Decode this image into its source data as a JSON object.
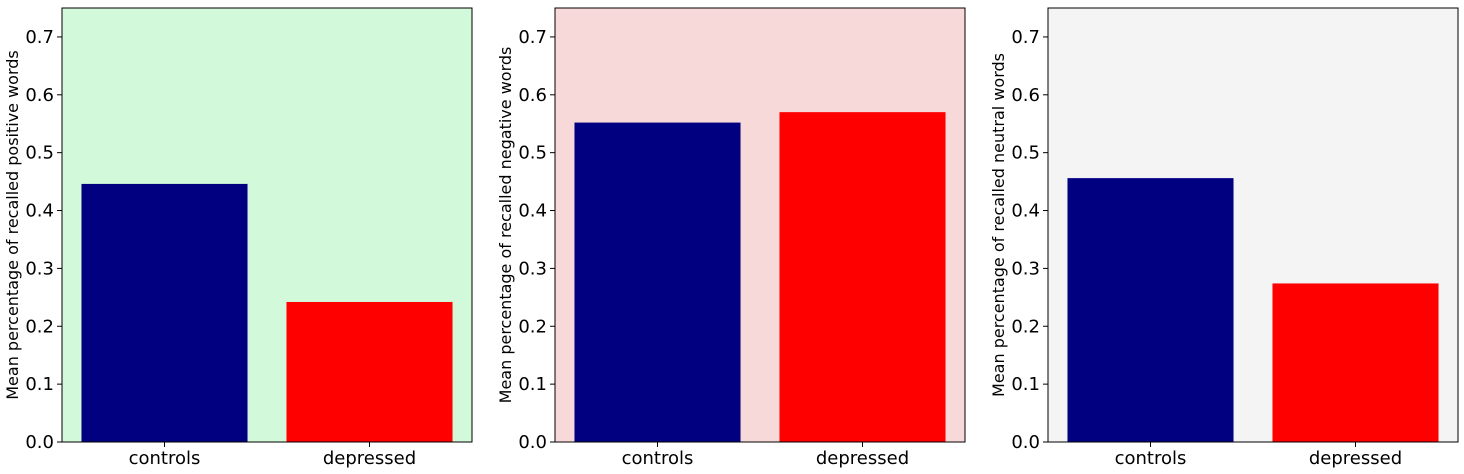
{
  "chart_data": [
    {
      "type": "bar",
      "categories": [
        "controls",
        "depressed"
      ],
      "values": [
        0.446,
        0.242
      ],
      "colors": [
        "#000080",
        "#ff0000"
      ],
      "background": "#d2f9d9",
      "ylabel": "Mean percentage of recalled positive words",
      "ylim": [
        0,
        0.75
      ],
      "yticks": [
        "0.0",
        "0.1",
        "0.2",
        "0.3",
        "0.4",
        "0.5",
        "0.6",
        "0.7"
      ],
      "grid": false,
      "legend": "none"
    },
    {
      "type": "bar",
      "categories": [
        "controls",
        "depressed"
      ],
      "values": [
        0.552,
        0.57
      ],
      "colors": [
        "#000080",
        "#ff0000"
      ],
      "background": "#f8d9d9",
      "ylabel": "Mean percentage of recalled negative words",
      "ylim": [
        0,
        0.75
      ],
      "yticks": [
        "0.0",
        "0.1",
        "0.2",
        "0.3",
        "0.4",
        "0.5",
        "0.6",
        "0.7"
      ],
      "grid": false,
      "legend": "none"
    },
    {
      "type": "bar",
      "categories": [
        "controls",
        "depressed"
      ],
      "values": [
        0.456,
        0.274
      ],
      "colors": [
        "#000080",
        "#ff0000"
      ],
      "background": "#f4f4f4",
      "ylabel": "Mean percentage of recalled neutral words",
      "ylim": [
        0,
        0.75
      ],
      "yticks": [
        "0.0",
        "0.1",
        "0.2",
        "0.3",
        "0.4",
        "0.5",
        "0.6",
        "0.7"
      ],
      "grid": false,
      "legend": "none"
    }
  ]
}
